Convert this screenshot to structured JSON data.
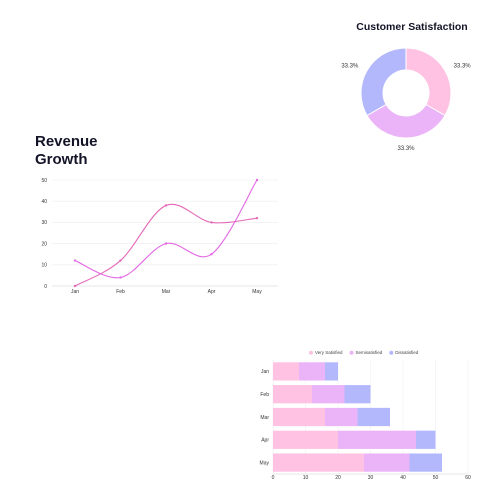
{
  "line_chart": {
    "title_line1": "Revenue",
    "title_line2": "Growth"
  },
  "pie_chart": {
    "title": "Customer Satisfaction"
  },
  "chart_data": [
    {
      "type": "line",
      "title": "Revenue Growth",
      "categories": [
        "Jan",
        "Feb",
        "Mar",
        "Apr",
        "May"
      ],
      "ylim": [
        0,
        50
      ],
      "yticks": [
        0,
        10,
        20,
        30,
        40,
        50
      ],
      "grid": true,
      "series": [
        {
          "values": [
            12,
            4,
            20,
            15,
            50
          ],
          "color": "#e368e3"
        },
        {
          "values": [
            0,
            12,
            38,
            30,
            32
          ],
          "color": "#e368b8"
        }
      ]
    },
    {
      "type": "pie",
      "title": "Customer Satisfaction",
      "donut": true,
      "labels": [
        "33.3%",
        "33.3%",
        "33.3%"
      ],
      "values": [
        33.3,
        33.3,
        33.3
      ],
      "colors": [
        "#ffc2e2",
        "#ebb3f8",
        "#b3b8fd"
      ]
    },
    {
      "type": "bar",
      "orientation": "horizontal",
      "stacked": true,
      "categories": [
        "Jan",
        "Feb",
        "Mar",
        "Apr",
        "May"
      ],
      "xlim": [
        0,
        60
      ],
      "xticks": [
        0,
        10,
        20,
        30,
        40,
        50,
        60
      ],
      "legend_position": "top",
      "series": [
        {
          "name": "Very Satisfied",
          "values": [
            8,
            12,
            16,
            20,
            28
          ],
          "color": "#ffc2e2"
        },
        {
          "name": "Semisatisfied",
          "values": [
            8,
            10,
            10,
            24,
            14
          ],
          "color": "#ebb3f8"
        },
        {
          "name": "Dissatisfied",
          "values": [
            4,
            8,
            10,
            6,
            10
          ],
          "color": "#b3b8fd"
        }
      ]
    }
  ]
}
